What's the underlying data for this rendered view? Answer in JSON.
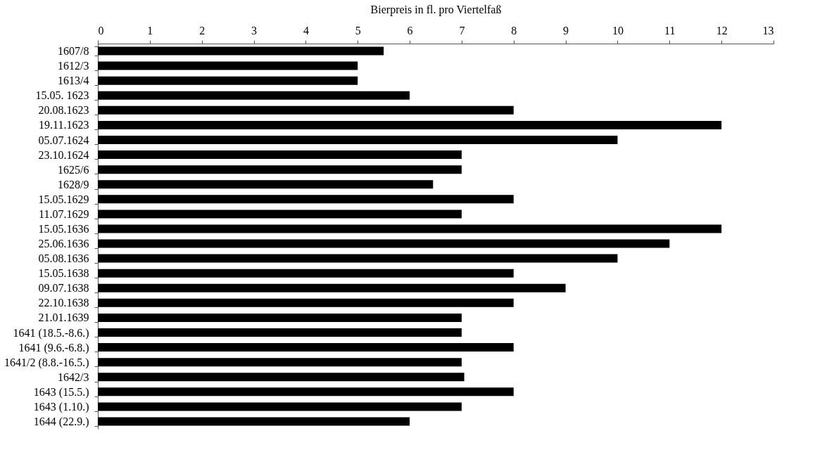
{
  "chart_data": {
    "type": "bar",
    "orientation": "horizontal",
    "title": "Bierpreis in fl. pro Viertelfaß",
    "categories": [
      "1607/8",
      "1612/3",
      "1613/4",
      "15.05. 1623",
      "20.08.1623",
      "19.11.1623",
      "05.07.1624",
      "23.10.1624",
      "1625/6",
      "1628/9",
      "15.05.1629",
      "11.07.1629",
      "15.05.1636",
      "25.06.1636",
      "05.08.1636",
      "15.05.1638",
      "09.07.1638",
      "22.10.1638",
      "21.01.1639",
      "1641 (18.5.-8.6.)",
      "1641 (9.6.-6.8.)",
      "1641/2 (8.8.-16.5.)",
      "1642/3",
      "1643 (15.5.)",
      "1643 (1.10.)",
      "1644 (22.9.)"
    ],
    "values": [
      5.5,
      5,
      5,
      6,
      8,
      12,
      10,
      7,
      7,
      6.45,
      8,
      7,
      12,
      11,
      10,
      8,
      9,
      8,
      7,
      7,
      8,
      7,
      7.05,
      8,
      7,
      6
    ],
    "color": "#000000",
    "xlim": [
      0,
      13
    ],
    "xticks": [
      0,
      1,
      2,
      3,
      4,
      5,
      6,
      7,
      8,
      9,
      10,
      11,
      12,
      13
    ],
    "grid": false
  }
}
